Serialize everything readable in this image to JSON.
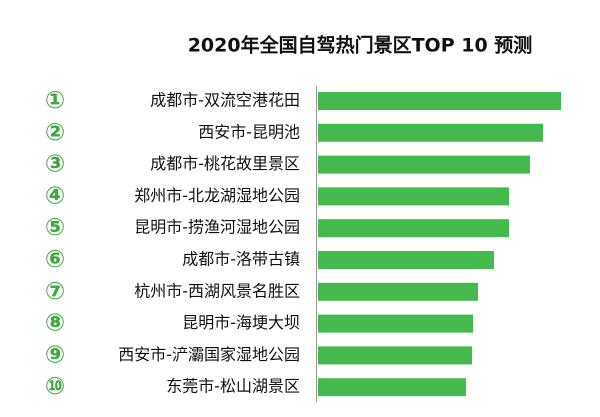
{
  "chart_data": {
    "type": "bar",
    "orientation": "horizontal",
    "title": "2020年全国自驾热门景区TOP 10 预测",
    "ranks": [
      "①",
      "②",
      "③",
      "④",
      "⑤",
      "⑥",
      "⑦",
      "⑧",
      "⑨",
      "⑩"
    ],
    "categories": [
      "成都市-双流空港花田",
      "西安市-昆明池",
      "成都市-桃花故里景区",
      "郑州市-北龙湖湿地公园",
      "昆明市-捞渔河湿地公园",
      "成都市-洛带古镇",
      "杭州市-西湖风景名胜区",
      "昆明市-海埂大坝",
      "西安市-浐灞国家湿地公园",
      "东莞市-松山湖景区"
    ],
    "values": [
      243,
      225,
      212,
      191,
      191,
      176,
      160,
      155,
      154,
      148
    ],
    "color": "#46b94e"
  }
}
